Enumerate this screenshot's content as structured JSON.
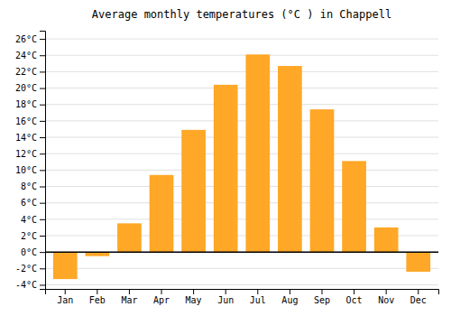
{
  "chart_data": {
    "type": "bar",
    "title": "Average monthly temperatures (°C ) in Chappell",
    "categories": [
      "Jan",
      "Feb",
      "Mar",
      "Apr",
      "May",
      "Jun",
      "Jul",
      "Aug",
      "Sep",
      "Oct",
      "Nov",
      "Dec"
    ],
    "values": [
      -3.3,
      -0.5,
      3.5,
      9.4,
      14.9,
      20.4,
      24.1,
      22.7,
      17.4,
      11.1,
      3.0,
      -2.4
    ],
    "color": "#FFA726",
    "ylim": [
      -4.5,
      27
    ],
    "yticks": [
      {
        "value": -4,
        "label": "-4°C"
      },
      {
        "value": -2,
        "label": "-2°C"
      },
      {
        "value": 0,
        "label": "0°C"
      },
      {
        "value": 2,
        "label": "2°C"
      },
      {
        "value": 4,
        "label": "4°C"
      },
      {
        "value": 6,
        "label": "6°C"
      },
      {
        "value": 8,
        "label": "8°C"
      },
      {
        "value": 10,
        "label": "10°C"
      },
      {
        "value": 12,
        "label": "12°C"
      },
      {
        "value": 14,
        "label": "14°C"
      },
      {
        "value": 16,
        "label": "16°C"
      },
      {
        "value": 18,
        "label": "18°C"
      },
      {
        "value": 20,
        "label": "20°C"
      },
      {
        "value": 22,
        "label": "22°C"
      },
      {
        "value": 24,
        "label": "24°C"
      },
      {
        "value": 26,
        "label": "26°C"
      }
    ],
    "grid": true
  }
}
